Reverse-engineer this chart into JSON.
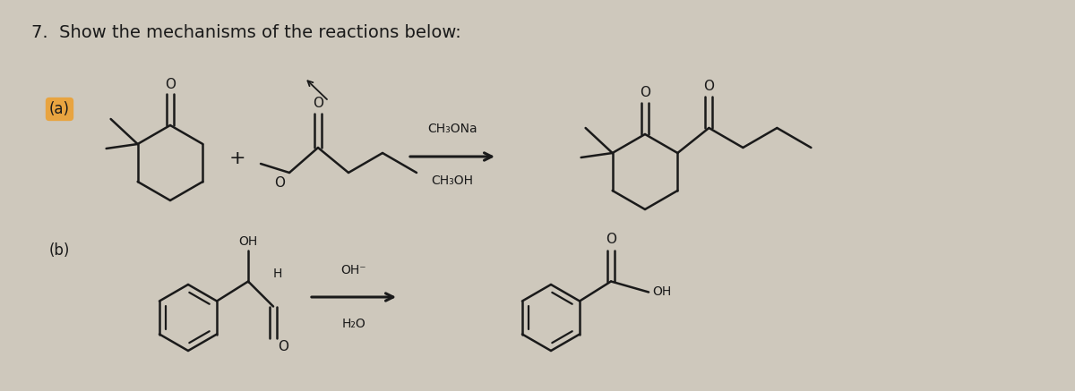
{
  "title": "7.  Show the mechanisms of the reactions below:",
  "background_color": "#cec8bc",
  "title_fontsize": 14,
  "label_a": "(a)",
  "label_b": "(b)",
  "reagent_a": "CH₃ONa",
  "reagent_a2": "CH₃OH",
  "reagent_b": "OH⁻",
  "reagent_b2": "H₂O",
  "plus_sign": "+",
  "arrow_color": "#1a1a1a",
  "text_color": "#1a1a1a",
  "structure_color": "#1a1a1a"
}
